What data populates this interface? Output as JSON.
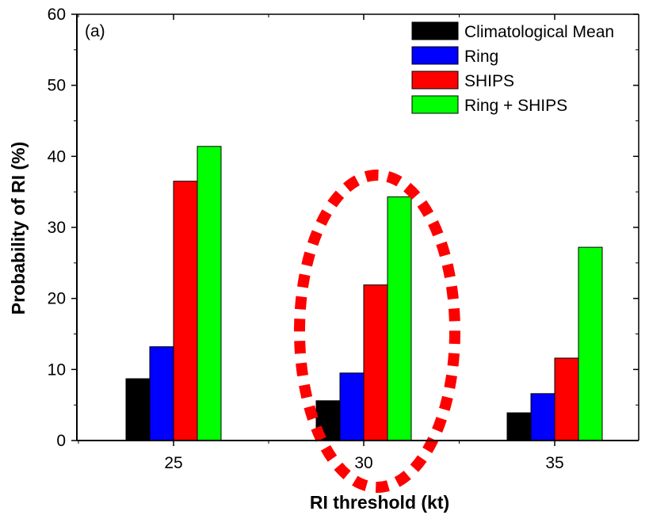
{
  "chart_data": {
    "type": "bar",
    "panel_label": "(a)",
    "xlabel": "RI threshold (kt)",
    "ylabel": "Probability of RI (%)",
    "categories": [
      "25",
      "30",
      "35"
    ],
    "ylim": [
      0,
      60
    ],
    "yticks": [
      "0",
      "10",
      "20",
      "30",
      "40",
      "50",
      "60"
    ],
    "grid": false,
    "legend_position": "top-right",
    "series": [
      {
        "name": "Climatological Mean",
        "color": "#000000",
        "values": [
          8.7,
          5.6,
          3.9
        ]
      },
      {
        "name": "Ring",
        "color": "#0000ff",
        "values": [
          13.2,
          9.5,
          6.6
        ]
      },
      {
        "name": "SHIPS",
        "color": "#ff0000",
        "values": [
          36.5,
          21.9,
          11.6
        ]
      },
      {
        "name": "Ring + SHIPS",
        "color": "#00ff00",
        "values": [
          41.4,
          34.3,
          27.2
        ]
      }
    ],
    "highlight": {
      "category": "30",
      "shape": "dotted-ellipse",
      "color": "#ff0000"
    }
  }
}
